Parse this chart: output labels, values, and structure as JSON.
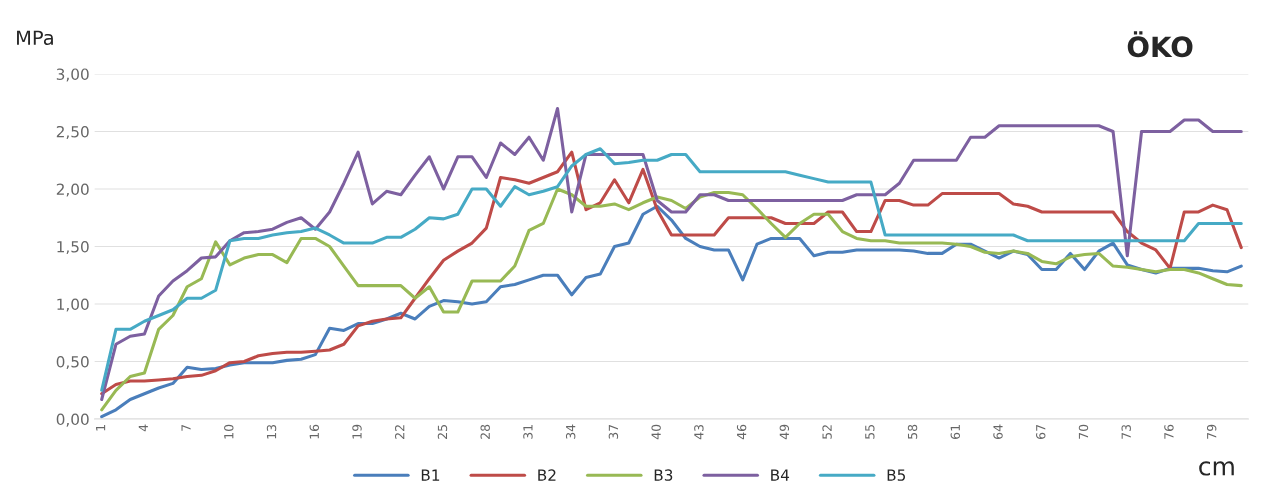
{
  "chart_data": {
    "type": "line",
    "title": "ÖKO",
    "ylabel": "MPa",
    "xlabel": "cm",
    "categories": [
      "1",
      null,
      null,
      "4",
      null,
      null,
      "7",
      null,
      null,
      "10",
      null,
      null,
      "13",
      null,
      null,
      "16",
      null,
      null,
      "19",
      null,
      null,
      "22",
      null,
      null,
      "25",
      null,
      null,
      "28",
      null,
      null,
      "31",
      null,
      null,
      "34",
      null,
      null,
      "37",
      null,
      null,
      "40",
      null,
      null,
      "43",
      null,
      null,
      "46",
      null,
      null,
      "49",
      null,
      null,
      "52",
      null,
      null,
      "55",
      null,
      null,
      "58",
      null,
      null,
      "61",
      null,
      null,
      "64",
      null,
      null,
      "67",
      null,
      null,
      "70",
      null,
      null,
      "73",
      null,
      null,
      "76",
      null,
      null,
      "79",
      null,
      null
    ],
    "series": [
      {
        "name": "B1",
        "color": "#4a7ebb",
        "values": [
          0.02,
          0.08,
          0.17,
          0.22,
          0.27,
          0.31,
          0.45,
          0.43,
          0.44,
          0.47,
          0.49,
          0.49,
          0.49,
          0.51,
          0.52,
          0.56,
          0.79,
          0.77,
          0.83,
          0.83,
          0.87,
          0.92,
          0.87,
          0.98,
          1.03,
          1.02,
          1.0,
          1.02,
          1.15,
          1.17,
          1.21,
          1.25,
          1.25,
          1.08,
          1.23,
          1.26,
          1.5,
          1.53,
          1.78,
          1.85,
          1.73,
          1.57,
          1.5,
          1.47,
          1.47,
          1.21,
          1.52,
          1.57,
          1.57,
          1.57,
          1.42,
          1.45,
          1.45,
          1.47,
          1.47,
          1.47,
          1.47,
          1.46,
          1.44,
          1.44,
          1.52,
          1.52,
          1.46,
          1.4,
          1.46,
          1.43,
          1.3,
          1.3,
          1.44,
          1.3,
          1.46,
          1.53,
          1.34,
          1.3,
          1.27,
          1.31,
          1.31,
          1.31,
          1.29,
          1.28,
          1.33
        ]
      },
      {
        "name": "B2",
        "color": "#be4b48",
        "values": [
          0.22,
          0.3,
          0.33,
          0.33,
          0.34,
          0.35,
          0.37,
          0.38,
          0.42,
          0.49,
          0.5,
          0.55,
          0.57,
          0.58,
          0.58,
          0.59,
          0.6,
          0.65,
          0.81,
          0.85,
          0.87,
          0.88,
          1.05,
          1.22,
          1.38,
          1.46,
          1.53,
          1.66,
          2.1,
          2.08,
          2.05,
          2.1,
          2.15,
          2.32,
          1.82,
          1.88,
          2.08,
          1.88,
          2.17,
          1.82,
          1.6,
          1.6,
          1.6,
          1.6,
          1.75,
          1.75,
          1.75,
          1.75,
          1.7,
          1.7,
          1.7,
          1.8,
          1.8,
          1.63,
          1.63,
          1.9,
          1.9,
          1.86,
          1.86,
          1.96,
          1.96,
          1.96,
          1.96,
          1.96,
          1.87,
          1.85,
          1.8,
          1.8,
          1.8,
          1.8,
          1.8,
          1.8,
          1.63,
          1.53,
          1.47,
          1.31,
          1.8,
          1.8,
          1.86,
          1.82,
          1.49
        ]
      },
      {
        "name": "B3",
        "color": "#98b954",
        "values": [
          0.08,
          0.25,
          0.37,
          0.4,
          0.78,
          0.9,
          1.15,
          1.22,
          1.54,
          1.34,
          1.4,
          1.43,
          1.43,
          1.36,
          1.57,
          1.57,
          1.5,
          1.33,
          1.16,
          1.16,
          1.16,
          1.16,
          1.05,
          1.15,
          0.93,
          0.93,
          1.2,
          1.2,
          1.2,
          1.33,
          1.64,
          1.7,
          2.0,
          1.95,
          1.85,
          1.85,
          1.87,
          1.82,
          1.88,
          1.93,
          1.9,
          1.83,
          1.93,
          1.97,
          1.97,
          1.95,
          1.83,
          1.7,
          1.58,
          1.7,
          1.78,
          1.78,
          1.63,
          1.57,
          1.55,
          1.55,
          1.53,
          1.53,
          1.53,
          1.53,
          1.52,
          1.5,
          1.45,
          1.44,
          1.46,
          1.44,
          1.37,
          1.35,
          1.41,
          1.43,
          1.44,
          1.33,
          1.32,
          1.3,
          1.28,
          1.3,
          1.3,
          1.27,
          1.22,
          1.17,
          1.16
        ]
      },
      {
        "name": "B4",
        "color": "#7d60a0",
        "values": [
          0.17,
          0.65,
          0.72,
          0.74,
          1.07,
          1.2,
          1.29,
          1.4,
          1.41,
          1.55,
          1.62,
          1.63,
          1.65,
          1.71,
          1.75,
          1.65,
          1.8,
          2.05,
          2.32,
          1.87,
          1.98,
          1.95,
          2.12,
          2.28,
          2.0,
          2.28,
          2.28,
          2.1,
          2.4,
          2.3,
          2.45,
          2.25,
          2.7,
          1.8,
          2.3,
          2.3,
          2.3,
          2.3,
          2.3,
          1.9,
          1.8,
          1.8,
          1.95,
          1.95,
          1.9,
          1.9,
          1.9,
          1.9,
          1.9,
          1.9,
          1.9,
          1.9,
          1.9,
          1.95,
          1.95,
          1.95,
          2.05,
          2.25,
          2.25,
          2.25,
          2.25,
          2.45,
          2.45,
          2.55,
          2.55,
          2.55,
          2.55,
          2.55,
          2.55,
          2.55,
          2.55,
          2.5,
          1.42,
          2.5,
          2.5,
          2.5,
          2.6,
          2.6,
          2.5,
          2.5,
          2.5
        ]
      },
      {
        "name": "B5",
        "color": "#46aac5",
        "values": [
          0.25,
          0.78,
          0.78,
          0.85,
          0.9,
          0.95,
          1.05,
          1.05,
          1.12,
          1.55,
          1.57,
          1.57,
          1.6,
          1.62,
          1.63,
          1.66,
          1.6,
          1.53,
          1.53,
          1.53,
          1.58,
          1.58,
          1.65,
          1.75,
          1.74,
          1.78,
          2.0,
          2.0,
          1.85,
          2.02,
          1.95,
          1.98,
          2.02,
          2.2,
          2.3,
          2.35,
          2.22,
          2.23,
          2.25,
          2.25,
          2.3,
          2.3,
          2.15,
          2.15,
          2.15,
          2.15,
          2.15,
          2.15,
          2.15,
          2.12,
          2.09,
          2.06,
          2.06,
          2.06,
          2.06,
          1.6,
          1.6,
          1.6,
          1.6,
          1.6,
          1.6,
          1.6,
          1.6,
          1.6,
          1.6,
          1.55,
          1.55,
          1.55,
          1.55,
          1.55,
          1.55,
          1.55,
          1.55,
          1.55,
          1.55,
          1.55,
          1.55,
          1.7,
          1.7,
          1.7,
          1.7
        ]
      }
    ],
    "ylim": [
      0,
      3
    ],
    "yticks": [
      {
        "value": 0,
        "label": "0,00"
      },
      {
        "value": 0.5,
        "label": "0,50"
      },
      {
        "value": 1,
        "label": "1,00"
      },
      {
        "value": 1.5,
        "label": "1,50"
      },
      {
        "value": 2,
        "label": "2,00"
      },
      {
        "value": 2.5,
        "label": "2,50"
      },
      {
        "value": 3,
        "label": "3,00"
      }
    ],
    "grid": "y",
    "legend": "bottom",
    "marker": "none",
    "line_style": "solid"
  }
}
